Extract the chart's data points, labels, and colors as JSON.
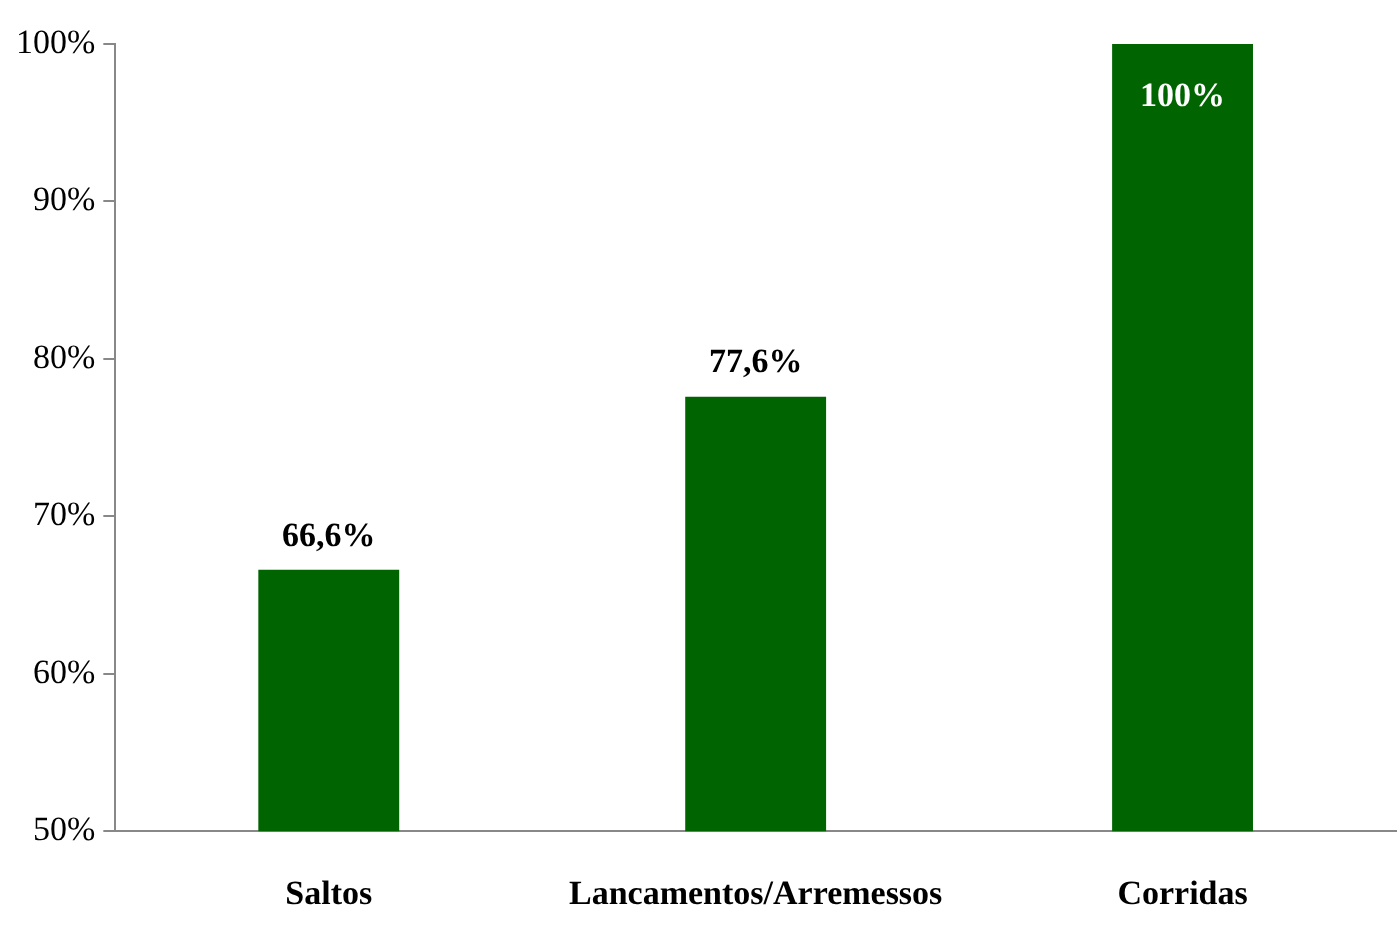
{
  "chart_data": {
    "type": "bar",
    "categories": [
      "Saltos",
      "Lancamentos/Arremessos",
      "Corridas"
    ],
    "values": [
      66.6,
      77.6,
      100
    ],
    "value_labels": [
      "66,6%",
      "77,6%",
      "100%"
    ],
    "color": "#006400",
    "ylim": [
      50,
      100
    ],
    "yticks": [
      {
        "value": 50,
        "label": "50%"
      },
      {
        "value": 60,
        "label": "60%"
      },
      {
        "value": 70,
        "label": "70%"
      },
      {
        "value": 80,
        "label": "80%"
      },
      {
        "value": 90,
        "label": "90%"
      },
      {
        "value": 100,
        "label": "100%"
      }
    ]
  }
}
